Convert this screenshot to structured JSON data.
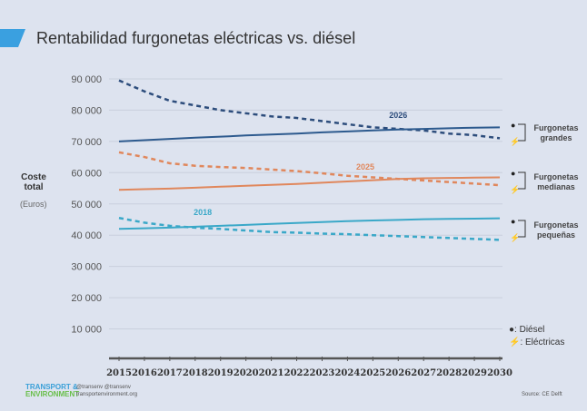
{
  "title": "Rentabilidad furgonetas eléctricas vs. diésel",
  "chart_data": {
    "type": "line",
    "title": "Rentabilidad furgonetas eléctricas vs. diésel",
    "ylabel": "Coste total",
    "yunit": "(Euros)",
    "ylim": [
      0,
      90000
    ],
    "yticks": [
      "10 000",
      "20 000",
      "30 000",
      "40 000",
      "50 000",
      "60 000",
      "70 000",
      "80 000",
      "90 000"
    ],
    "ytick_values": [
      10000,
      20000,
      30000,
      40000,
      50000,
      60000,
      70000,
      80000,
      90000
    ],
    "x": [
      2015,
      2016,
      2017,
      2018,
      2019,
      2020,
      2021,
      2022,
      2023,
      2024,
      2025,
      2026,
      2027,
      2028,
      2029,
      2030
    ],
    "grid": true,
    "series": [
      {
        "group": "Furgonetas grandes",
        "type": "diesel",
        "color": "#2d4d7c",
        "dashed": true,
        "values": [
          89500,
          86000,
          83000,
          81500,
          80000,
          79000,
          78000,
          77500,
          76500,
          75500,
          74500,
          74000,
          73500,
          72500,
          72000,
          71000
        ]
      },
      {
        "group": "Furgonetas grandes",
        "type": "electric",
        "color": "#2d5a8e",
        "dashed": false,
        "values": [
          70000,
          70400,
          70800,
          71200,
          71500,
          71900,
          72200,
          72500,
          72900,
          73200,
          73500,
          73800,
          74000,
          74200,
          74400,
          74500
        ]
      },
      {
        "group": "Furgonetas medianas",
        "type": "diesel",
        "color": "#e0875c",
        "dashed": true,
        "values": [
          66500,
          65000,
          63000,
          62200,
          61800,
          61500,
          61000,
          60500,
          59800,
          59000,
          58500,
          58000,
          57500,
          57000,
          56500,
          56000
        ]
      },
      {
        "group": "Furgonetas medianas",
        "type": "electric",
        "color": "#e0875c",
        "dashed": false,
        "values": [
          54500,
          54700,
          54900,
          55200,
          55500,
          55800,
          56100,
          56400,
          56800,
          57200,
          57600,
          58000,
          58200,
          58300,
          58400,
          58500
        ]
      },
      {
        "group": "Furgonetas pequeñas",
        "type": "diesel",
        "color": "#3aa8c8",
        "dashed": true,
        "values": [
          45500,
          44000,
          43000,
          42400,
          42000,
          41500,
          41000,
          40800,
          40500,
          40300,
          40000,
          39700,
          39400,
          39100,
          38800,
          38500
        ]
      },
      {
        "group": "Furgonetas pequeñas",
        "type": "electric",
        "color": "#3aa8c8",
        "dashed": false,
        "values": [
          42000,
          42200,
          42400,
          42700,
          43000,
          43300,
          43600,
          43900,
          44200,
          44500,
          44700,
          44900,
          45100,
          45200,
          45300,
          45400
        ]
      }
    ],
    "annotations": [
      {
        "text": "2026",
        "x": 2026,
        "y": 77500,
        "color": "#2d4d7c"
      },
      {
        "text": "2025",
        "x": 2024.7,
        "y": 61000,
        "color": "#e0875c"
      },
      {
        "text": "2018",
        "x": 2018.3,
        "y": 46500,
        "color": "#3aa8c8"
      }
    ],
    "groups": [
      "Furgonetas grandes",
      "Furgonetas medianas",
      "Furgonetas pequeñas"
    ],
    "legend": {
      "diesel": "Diésel",
      "electric": "Eléctricas",
      "placement": "bottom-right"
    }
  },
  "footer": {
    "logo_line1": "TRANSPORT &",
    "logo_line2": "ENVIRONMENT",
    "twitter": "@transenv",
    "facebook": "@transenv",
    "website": "transportenvironment.org",
    "source": "Source: CE Delft"
  },
  "colors": {
    "background": "#dde3ef",
    "accent": "#3aa0e0"
  }
}
